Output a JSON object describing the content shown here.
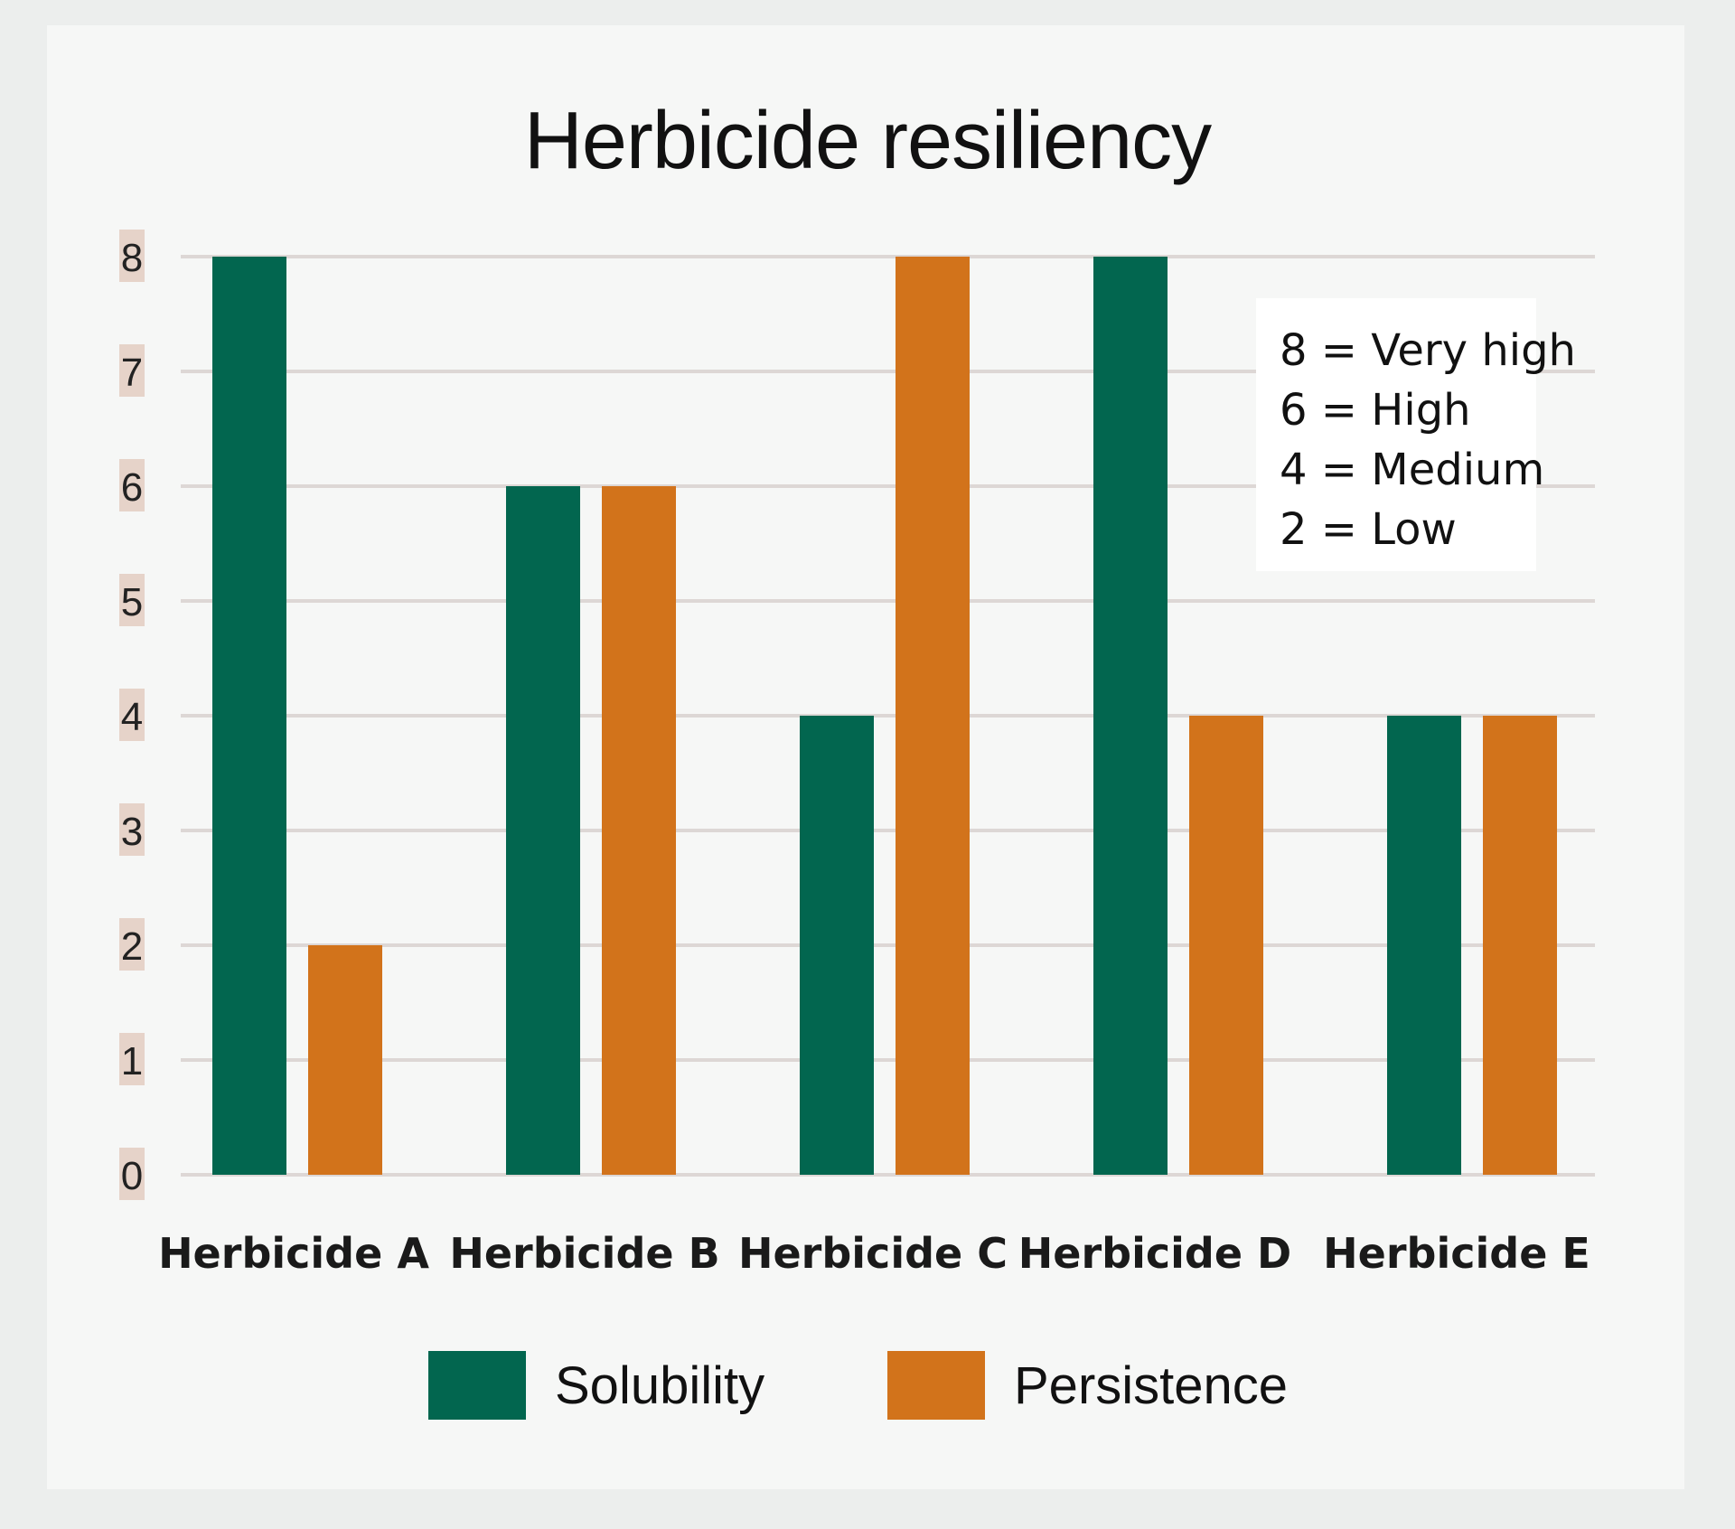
{
  "colors": {
    "solubility": "#02664f",
    "persistence": "#d2731b",
    "grid": "#ddd7d5",
    "tick_bg": "#e6d3c9"
  },
  "chart_data": {
    "type": "bar",
    "title": "Herbicide resiliency",
    "categories": [
      "Herbicide A",
      "Herbicide B",
      "Herbicide C",
      "Herbicide D",
      "Herbicide E"
    ],
    "series": [
      {
        "name": "Solubility",
        "values": [
          8,
          6,
          4,
          8,
          4
        ]
      },
      {
        "name": "Persistence",
        "values": [
          2,
          6,
          8,
          4,
          4
        ]
      }
    ],
    "ylim": [
      0,
      8
    ],
    "yticks": [
      0,
      1,
      2,
      3,
      4,
      5,
      6,
      7,
      8
    ],
    "grid": true,
    "legend_position": "bottom",
    "annotation": {
      "lines": [
        "8 = Very high",
        "6 = High",
        "4 = Medium",
        "2 = Low"
      ],
      "position": "top-right"
    }
  }
}
